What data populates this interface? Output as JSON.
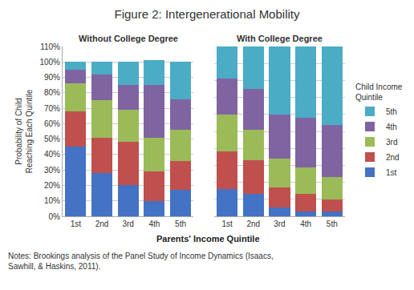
{
  "title": "Figure 2: Intergenerational Mobility",
  "xlabel": "Parents' Income Quintile",
  "notes": "Notes: Brookings analysis of the Panel Study of Income Dynamics (Isaacs,\nSawhill, & Haskins, 2011).",
  "legend_title": "Child Income\nQuintile",
  "chart_data": [
    {
      "type": "bar",
      "stacked": true,
      "grid": true,
      "legend": "right",
      "subtitle": "Without College Degree",
      "ylabel": "Probability of Child\nReaching Each Quintile",
      "categories": [
        "1st",
        "2nd",
        "3rd",
        "4th",
        "5th"
      ],
      "series": [
        {
          "name": "1st",
          "color": "#4472C4",
          "values": [
            45,
            28,
            20,
            10,
            17
          ]
        },
        {
          "name": "2nd",
          "color": "#C0504D",
          "values": [
            23,
            23,
            28,
            19,
            19
          ]
        },
        {
          "name": "3rd",
          "color": "#9BBB59",
          "values": [
            18,
            24,
            21,
            22,
            20
          ]
        },
        {
          "name": "4th",
          "color": "#8064A2",
          "values": [
            9,
            17,
            16,
            34,
            20
          ]
        },
        {
          "name": "5th",
          "color": "#4BACC6",
          "values": [
            5,
            8,
            15,
            16,
            24
          ]
        }
      ],
      "ylim": [
        0,
        110
      ],
      "yticks": [
        {
          "value": 0,
          "label": "0%"
        },
        {
          "value": 10,
          "label": "10%"
        },
        {
          "value": 20,
          "label": "20%"
        },
        {
          "value": 30,
          "label": "30%"
        },
        {
          "value": 40,
          "label": "40%"
        },
        {
          "value": 50,
          "label": "50%"
        },
        {
          "value": 60,
          "label": "60%"
        },
        {
          "value": 70,
          "label": "70%"
        },
        {
          "value": 80,
          "label": "80%"
        },
        {
          "value": 90,
          "label": "90%"
        },
        {
          "value": 100,
          "label": "100%"
        },
        {
          "value": 110,
          "label": "110%"
        }
      ]
    },
    {
      "type": "bar",
      "stacked": true,
      "grid": true,
      "tick_labels": "x",
      "subtitle": "With College Degree",
      "categories": [
        "1st",
        "2nd",
        "3rd",
        "4th",
        "5th"
      ],
      "series": [
        {
          "name": "1st",
          "color": "#4472C4",
          "values": [
            16,
            13,
            5,
            3,
            3
          ]
        },
        {
          "name": "2nd",
          "color": "#C0504D",
          "values": [
            22,
            20,
            12,
            10,
            7
          ]
        },
        {
          "name": "3rd",
          "color": "#9BBB59",
          "values": [
            22,
            18,
            17,
            16,
            13
          ]
        },
        {
          "name": "4th",
          "color": "#8064A2",
          "values": [
            21,
            24,
            26,
            29,
            31
          ]
        },
        {
          "name": "5th",
          "color": "#4BACC6",
          "values": [
            19,
            25,
            40,
            42,
            46
          ]
        }
      ],
      "ylim": [
        0,
        100
      ],
      "yticks": [
        0,
        10,
        20,
        30,
        40,
        50,
        60,
        70,
        80,
        90,
        100
      ]
    }
  ]
}
